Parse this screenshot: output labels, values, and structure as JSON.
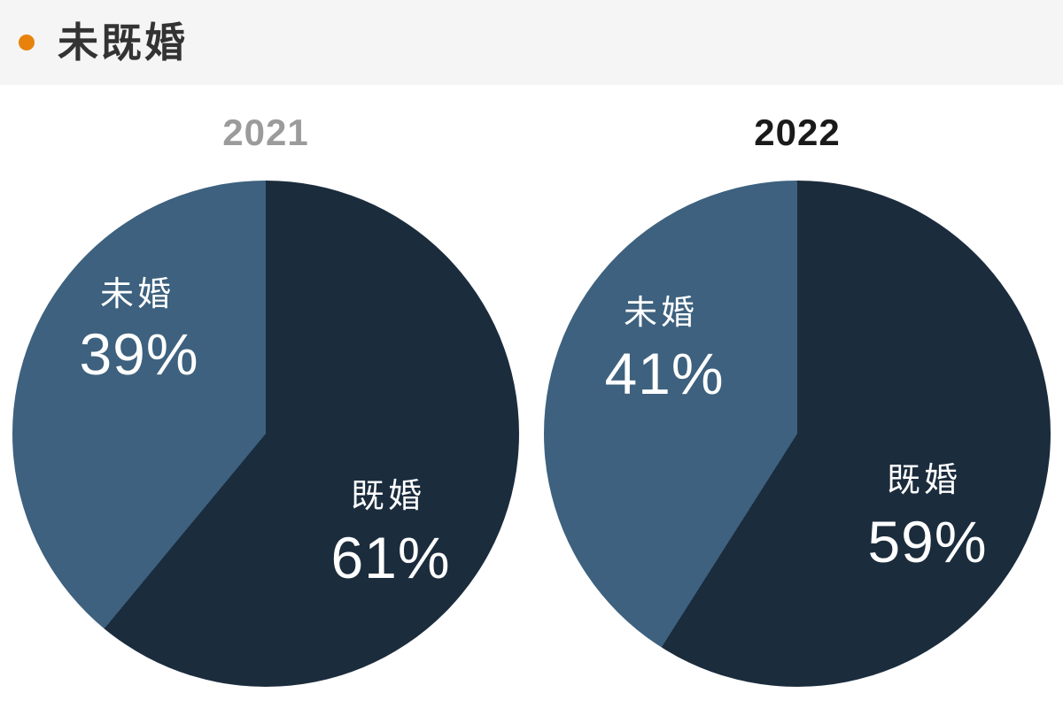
{
  "header": {
    "title": "未既婚",
    "bullet_color": "#e8820d",
    "background": "#f5f5f5",
    "text_color": "#333333"
  },
  "chart_data": [
    {
      "type": "pie",
      "title": "2021",
      "title_color": "#9b9b9b",
      "start_angle_deg": 0,
      "direction": "clockwise",
      "labels_inside": true,
      "categories": [
        "既婚",
        "未婚"
      ],
      "values": [
        61,
        39
      ],
      "slices": [
        {
          "label": "既婚",
          "value": 61,
          "percent_label": "61%",
          "color": "#1b2c3d"
        },
        {
          "label": "未婚",
          "value": 39,
          "percent_label": "39%",
          "color": "#3d617e"
        }
      ]
    },
    {
      "type": "pie",
      "title": "2022",
      "title_color": "#1a1a1a",
      "start_angle_deg": 0,
      "direction": "clockwise",
      "labels_inside": true,
      "categories": [
        "既婚",
        "未婚"
      ],
      "values": [
        59,
        41
      ],
      "slices": [
        {
          "label": "既婚",
          "value": 59,
          "percent_label": "59%",
          "color": "#1b2c3d"
        },
        {
          "label": "未婚",
          "value": 41,
          "percent_label": "41%",
          "color": "#3d617e"
        }
      ]
    }
  ]
}
